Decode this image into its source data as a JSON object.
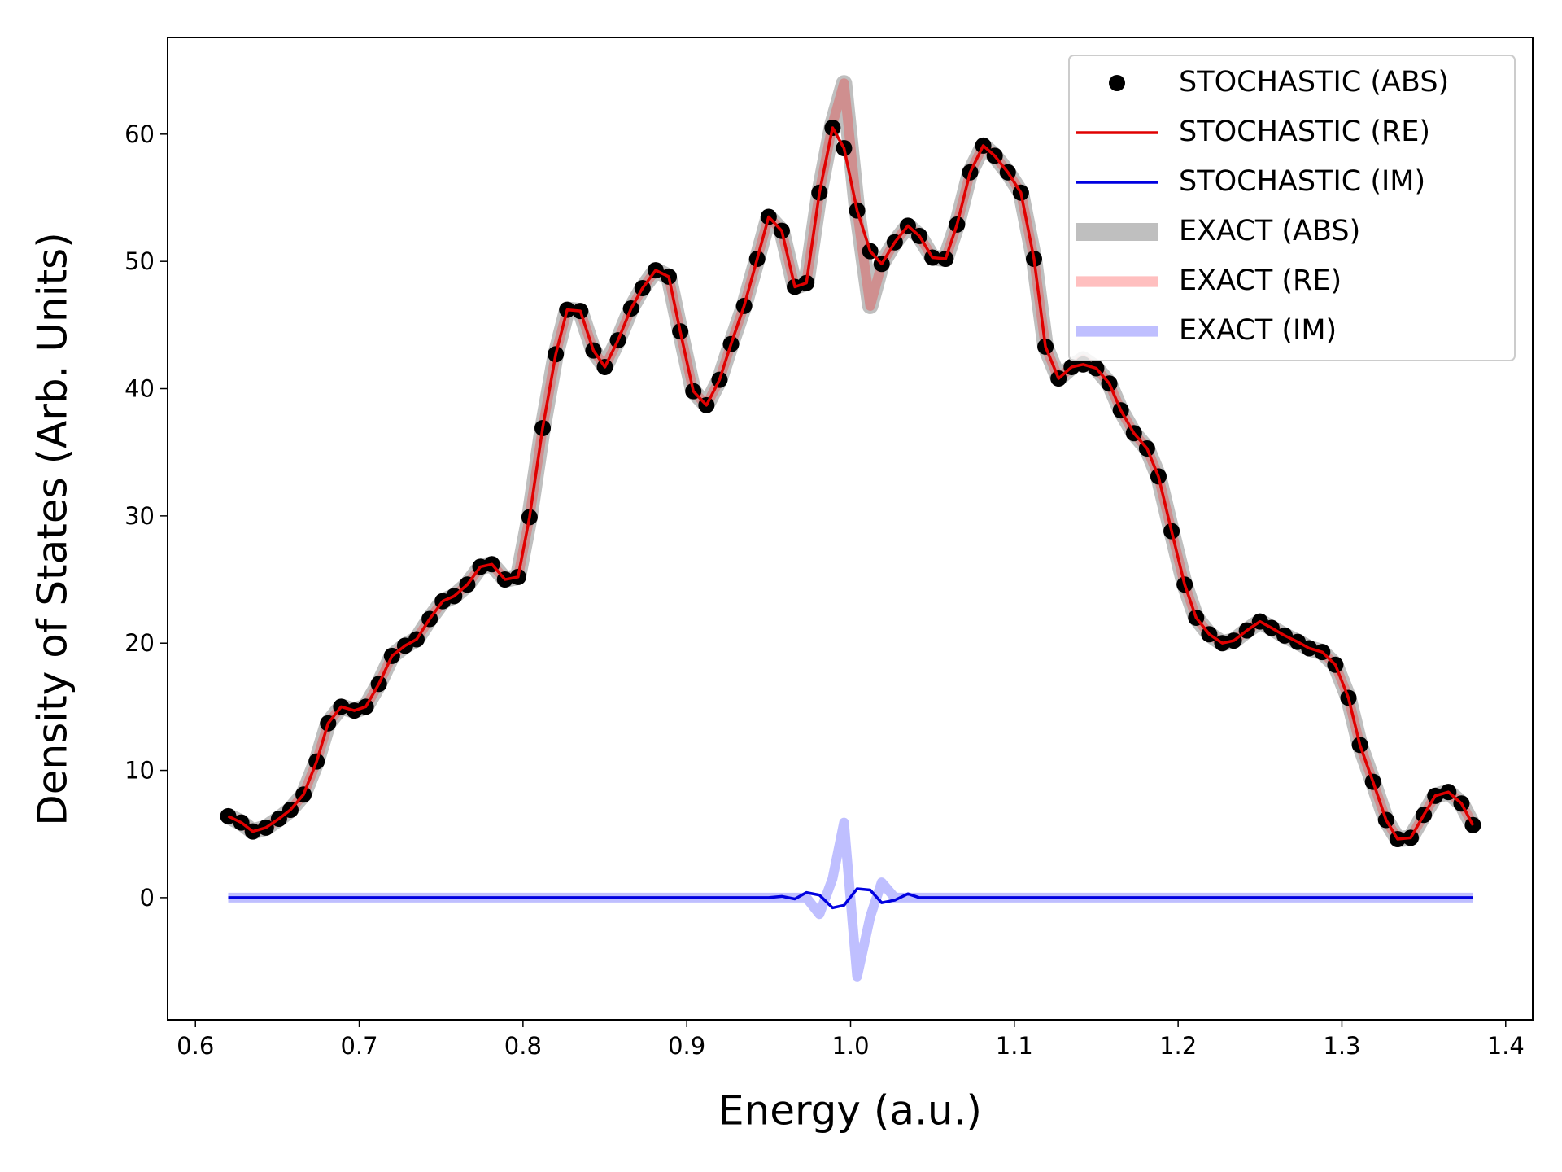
{
  "chart_data": {
    "type": "line",
    "xlabel": "Energy (a.u.)",
    "ylabel": "Density of States (Arb. Units)",
    "xlim": [
      0.583,
      1.4165
    ],
    "ylim": [
      -9.6,
      67.6
    ],
    "xticks": [
      0.6,
      0.7,
      0.8,
      0.9,
      {
        "value": 1,
        "label": "1.0"
      },
      1.1,
      1.2,
      1.3,
      1.4
    ],
    "yticks": [
      0,
      10,
      20,
      30,
      40,
      50,
      60
    ],
    "legend": "upper right",
    "x": [
      0.62,
      0.628,
      0.635,
      0.643,
      0.651,
      0.658,
      0.666,
      0.674,
      0.681,
      0.689,
      0.697,
      0.704,
      0.712,
      0.72,
      0.728,
      0.735,
      0.743,
      0.751,
      0.758,
      0.766,
      0.774,
      0.781,
      0.789,
      0.797,
      0.804,
      0.812,
      0.82,
      0.827,
      0.835,
      0.843,
      0.85,
      0.858,
      0.866,
      0.873,
      0.881,
      0.889,
      0.896,
      0.904,
      0.912,
      0.92,
      0.927,
      0.935,
      0.943,
      0.95,
      0.958,
      0.966,
      0.973,
      0.981,
      0.989,
      0.996,
      1.004,
      1.012,
      1.019,
      1.027,
      1.035,
      1.042,
      1.05,
      1.058,
      1.065,
      1.073,
      1.081,
      1.088,
      1.096,
      1.104,
      1.112,
      1.119,
      1.127,
      1.135,
      1.142,
      1.15,
      1.158,
      1.165,
      1.173,
      1.181,
      1.188,
      1.196,
      1.204,
      1.211,
      1.219,
      1.227,
      1.234,
      1.242,
      1.25,
      1.257,
      1.265,
      1.273,
      1.28,
      1.288,
      1.296,
      1.304,
      1.311,
      1.319,
      1.327,
      1.334,
      1.342,
      1.35,
      1.357,
      1.365,
      1.373,
      1.38
    ],
    "series": [
      {
        "name": "STOCHASTIC (ABS)",
        "color": "#000000",
        "style": "dots",
        "values": [
          6.4,
          5.9,
          5.2,
          5.5,
          6.2,
          6.9,
          8.1,
          10.7,
          13.7,
          15.0,
          14.7,
          15.0,
          16.8,
          19.0,
          19.8,
          20.3,
          21.9,
          23.3,
          23.7,
          24.6,
          26.0,
          26.2,
          25.0,
          25.2,
          29.9,
          36.9,
          42.7,
          46.2,
          46.1,
          43.0,
          41.7,
          43.8,
          46.3,
          47.9,
          49.3,
          48.8,
          44.5,
          39.8,
          38.7,
          40.7,
          43.5,
          46.5,
          50.2,
          53.5,
          52.4,
          48.0,
          48.3,
          55.4,
          60.5,
          58.9,
          54.0,
          50.8,
          49.8,
          51.5,
          52.8,
          52.0,
          50.3,
          50.2,
          52.9,
          57.0,
          59.1,
          58.3,
          57.0,
          55.4,
          50.2,
          43.3,
          40.8,
          41.7,
          41.9,
          41.6,
          40.4,
          38.3,
          36.5,
          35.3,
          33.1,
          28.8,
          24.6,
          22.0,
          20.7,
          20.0,
          20.2,
          21.0,
          21.7,
          21.2,
          20.6,
          20.1,
          19.6,
          19.3,
          18.3,
          15.7,
          12.0,
          9.1,
          6.1,
          4.6,
          4.7,
          6.5,
          8.0,
          8.3,
          7.4,
          5.7
        ]
      },
      {
        "name": "STOCHASTIC (RE)",
        "color": "#e00000",
        "style": "thin",
        "values": [
          6.4,
          5.9,
          5.2,
          5.5,
          6.2,
          6.9,
          8.1,
          10.7,
          13.7,
          15.0,
          14.7,
          15.0,
          16.8,
          19.0,
          19.8,
          20.3,
          21.9,
          23.3,
          23.7,
          24.6,
          26.0,
          26.2,
          25.0,
          25.2,
          29.9,
          36.9,
          42.7,
          46.2,
          46.1,
          43.0,
          41.7,
          43.8,
          46.3,
          47.9,
          49.3,
          48.8,
          44.5,
          39.8,
          38.7,
          40.7,
          43.5,
          46.5,
          50.2,
          53.5,
          52.4,
          48.0,
          48.3,
          55.4,
          60.5,
          58.9,
          54.0,
          50.8,
          49.8,
          51.5,
          52.8,
          52.0,
          50.3,
          50.2,
          52.9,
          57.0,
          59.1,
          58.3,
          57.0,
          55.4,
          50.2,
          43.3,
          40.8,
          41.7,
          41.9,
          41.6,
          40.4,
          38.3,
          36.5,
          35.3,
          33.1,
          28.8,
          24.6,
          22.0,
          20.7,
          20.0,
          20.2,
          21.0,
          21.7,
          21.2,
          20.6,
          20.1,
          19.6,
          19.3,
          18.3,
          15.7,
          12.0,
          9.1,
          6.1,
          4.6,
          4.7,
          6.5,
          8.0,
          8.3,
          7.4,
          5.7
        ]
      },
      {
        "name": "STOCHASTIC (IM)",
        "color": "#0000e0",
        "style": "thin",
        "values": [
          0,
          0,
          0,
          0,
          0,
          0,
          0,
          0,
          0,
          0,
          0,
          0,
          0,
          0,
          0,
          0,
          0,
          0,
          0,
          0,
          0,
          0,
          0,
          0,
          0,
          0,
          0,
          0,
          0,
          0,
          0,
          0,
          0,
          0,
          0,
          0,
          0,
          0,
          0,
          0,
          0,
          0,
          0,
          0,
          0.1,
          -0.1,
          0.4,
          0.2,
          -0.8,
          -0.6,
          0.7,
          0.6,
          -0.4,
          -0.2,
          0.3,
          0,
          0,
          0,
          0,
          0,
          0,
          0,
          0,
          0,
          0,
          0,
          0,
          0,
          0,
          0,
          0,
          0,
          0,
          0,
          0,
          0,
          0,
          0,
          0,
          0,
          0,
          0,
          0,
          0,
          0,
          0,
          0,
          0,
          0,
          0,
          0,
          0,
          0,
          0,
          0,
          0,
          0,
          0,
          0,
          0
        ]
      },
      {
        "name": "EXACT (ABS)",
        "color": "#bfbfbf",
        "style": "thick",
        "values": [
          6.4,
          5.9,
          5.2,
          5.5,
          6.2,
          6.9,
          8.1,
          10.7,
          13.7,
          15.0,
          14.7,
          15.0,
          16.8,
          19.0,
          19.8,
          20.3,
          21.9,
          23.3,
          23.7,
          24.6,
          26.0,
          26.2,
          25.0,
          25.2,
          29.9,
          36.9,
          42.7,
          46.2,
          46.1,
          43.0,
          41.7,
          43.8,
          46.3,
          47.9,
          49.3,
          48.8,
          44.5,
          39.8,
          38.7,
          40.7,
          43.5,
          46.5,
          50.2,
          53.5,
          52.4,
          48.0,
          48.3,
          55.4,
          60.8,
          64.0,
          54.0,
          46.5,
          49.8,
          51.5,
          52.8,
          52.0,
          50.3,
          50.2,
          52.9,
          57.0,
          59.1,
          58.3,
          57.0,
          55.4,
          50.2,
          43.3,
          40.8,
          41.7,
          42.3,
          41.6,
          40.4,
          38.3,
          36.5,
          35.3,
          33.1,
          28.8,
          24.6,
          22.0,
          20.7,
          20.0,
          20.2,
          21.0,
          21.7,
          21.2,
          20.6,
          20.1,
          19.6,
          19.3,
          18.3,
          15.7,
          12.0,
          9.1,
          6.1,
          4.6,
          4.7,
          6.5,
          8.0,
          8.3,
          7.4,
          5.7
        ]
      },
      {
        "name": "EXACT (RE)",
        "color": "rgba(255,0,0,0.25)",
        "style": "medium",
        "values": [
          6.4,
          5.9,
          5.2,
          5.5,
          6.2,
          6.9,
          8.1,
          10.7,
          13.7,
          15.0,
          14.7,
          15.0,
          16.8,
          19.0,
          19.8,
          20.3,
          21.9,
          23.3,
          23.7,
          24.6,
          26.0,
          26.2,
          25.0,
          25.2,
          29.9,
          36.9,
          42.7,
          46.2,
          46.1,
          43.0,
          41.7,
          43.8,
          46.3,
          47.9,
          49.3,
          48.8,
          44.5,
          39.8,
          38.7,
          40.7,
          43.5,
          46.5,
          50.2,
          53.5,
          52.4,
          48.0,
          48.3,
          55.4,
          60.8,
          64.0,
          54.0,
          46.5,
          49.8,
          51.5,
          52.8,
          52.0,
          50.3,
          50.2,
          52.9,
          57.0,
          59.1,
          58.3,
          57.0,
          55.4,
          50.2,
          43.3,
          40.8,
          41.7,
          42.3,
          41.6,
          40.4,
          38.3,
          36.5,
          35.3,
          33.1,
          28.8,
          24.6,
          22.0,
          20.7,
          20.0,
          20.2,
          21.0,
          21.7,
          21.2,
          20.6,
          20.1,
          19.6,
          19.3,
          18.3,
          15.7,
          12.0,
          9.1,
          6.1,
          4.6,
          4.7,
          6.5,
          8.0,
          8.3,
          7.4,
          5.7
        ]
      },
      {
        "name": "EXACT (IM)",
        "color": "rgba(0,0,255,0.25)",
        "style": "medium",
        "values": [
          0,
          0,
          0,
          0,
          0,
          0,
          0,
          0,
          0,
          0,
          0,
          0,
          0,
          0,
          0,
          0,
          0,
          0,
          0,
          0,
          0,
          0,
          0,
          0,
          0,
          0,
          0,
          0,
          0,
          0,
          0,
          0,
          0,
          0,
          0,
          0,
          0,
          0,
          0,
          0,
          0,
          0,
          0,
          0,
          0,
          0,
          0,
          -1.3,
          1.5,
          5.9,
          -6.2,
          -1.5,
          1.2,
          0,
          0,
          0,
          0,
          0,
          0,
          0,
          0,
          0,
          0,
          0,
          0,
          0,
          0,
          0,
          0,
          0,
          0,
          0,
          0,
          0,
          0,
          0,
          0,
          0,
          0,
          0,
          0,
          0,
          0,
          0,
          0,
          0,
          0,
          0,
          0,
          0,
          0,
          0,
          0,
          0,
          0,
          0,
          0,
          0,
          0,
          0
        ]
      }
    ]
  }
}
